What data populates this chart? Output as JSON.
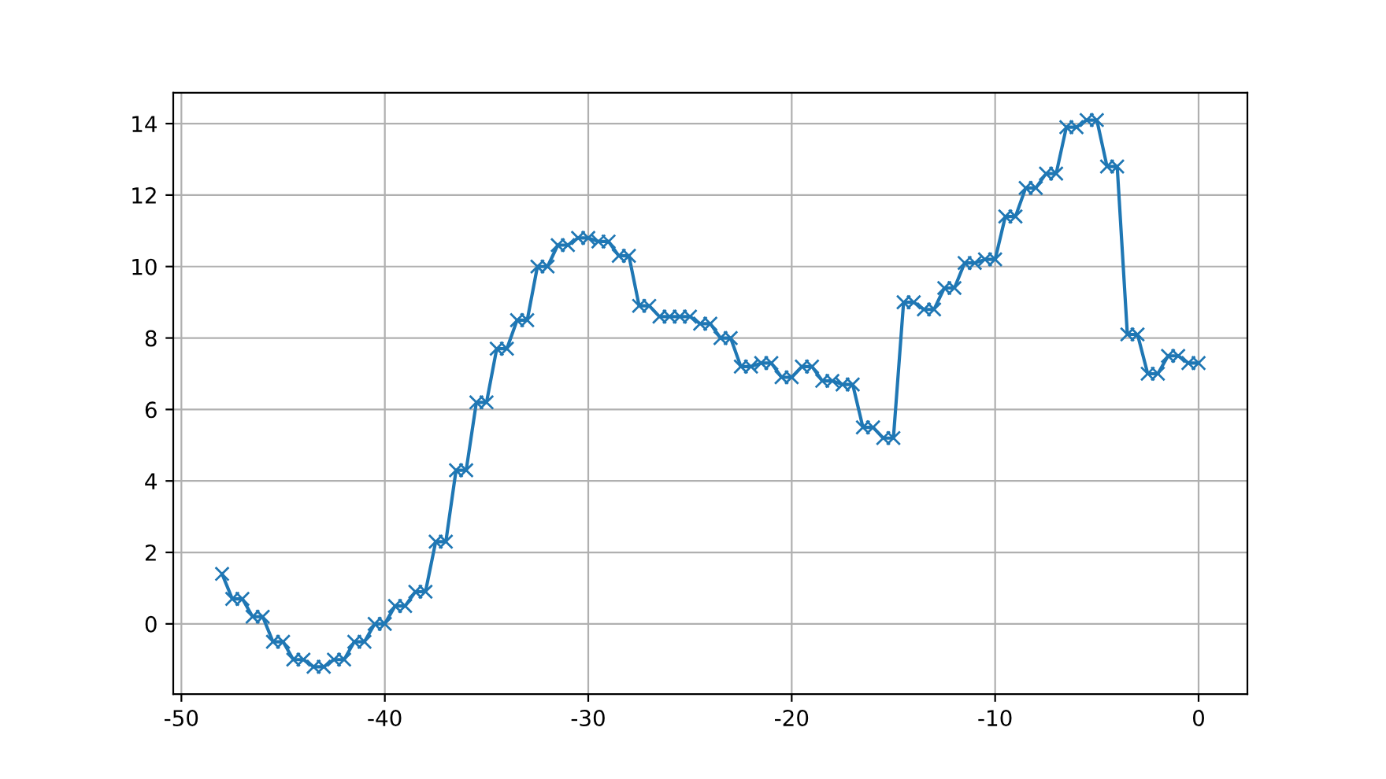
{
  "chart_data": {
    "type": "line",
    "x": [
      -48,
      -47.5,
      -47,
      -46.5,
      -46,
      -45.5,
      -45,
      -44.5,
      -44,
      -43.5,
      -43,
      -42.5,
      -42,
      -41.5,
      -41,
      -40.5,
      -40,
      -39.5,
      -39,
      -38.5,
      -38,
      -37.5,
      -37,
      -36.5,
      -36,
      -35.5,
      -35,
      -34.5,
      -34,
      -33.5,
      -33,
      -32.5,
      -32,
      -31.5,
      -31,
      -30.5,
      -30,
      -29.5,
      -29,
      -28.5,
      -28,
      -27.5,
      -27,
      -26.5,
      -26,
      -25.5,
      -25,
      -24.5,
      -24,
      -23.5,
      -23,
      -22.5,
      -22,
      -21.5,
      -21,
      -20.5,
      -20,
      -19.5,
      -19,
      -18.5,
      -18,
      -17.5,
      -17,
      -16.5,
      -16,
      -15.5,
      -15,
      -14.5,
      -14,
      -13.5,
      -13,
      -12.5,
      -12,
      -11.5,
      -11,
      -10.5,
      -10,
      -9.5,
      -9,
      -8.5,
      -8,
      -7.5,
      -7,
      -6.5,
      -6,
      -5.5,
      -5,
      -4.5,
      -4,
      -3.5,
      -3,
      -2.5,
      -2,
      -1.5,
      -1,
      -0.5,
      0
    ],
    "series": [
      {
        "color": "#1f77b4",
        "values": [
          1.4,
          0.7,
          0.7,
          0.2,
          0.2,
          -0.5,
          -0.5,
          -1.0,
          -1.0,
          -1.2,
          -1.2,
          -1.0,
          -1.0,
          -0.5,
          -0.5,
          0.0,
          0.0,
          0.5,
          0.5,
          0.9,
          0.9,
          2.3,
          2.3,
          4.3,
          4.3,
          6.2,
          6.2,
          7.7,
          7.7,
          8.5,
          8.5,
          10.0,
          10.0,
          10.6,
          10.6,
          10.8,
          10.8,
          10.7,
          10.7,
          10.3,
          10.3,
          8.9,
          8.9,
          8.6,
          8.6,
          8.6,
          8.6,
          8.4,
          8.4,
          8.0,
          8.0,
          7.2,
          7.2,
          7.3,
          7.3,
          6.9,
          6.9,
          7.2,
          7.2,
          6.8,
          6.8,
          6.7,
          6.7,
          5.5,
          5.5,
          5.2,
          5.2,
          9.0,
          9.0,
          8.8,
          8.8,
          9.4,
          9.4,
          10.1,
          10.1,
          10.2,
          10.2,
          11.4,
          11.4,
          12.2,
          12.2,
          12.6,
          12.6,
          13.9,
          13.9,
          14.1,
          14.1,
          12.8,
          12.8,
          8.1,
          8.1,
          7.0,
          7.0,
          7.5,
          7.5,
          7.3,
          7.3
        ]
      }
    ],
    "xlim": [
      -50.4,
      2.4
    ],
    "ylim": [
      -1.965,
      14.865
    ],
    "xticks": [
      -50,
      -40,
      -30,
      -20,
      -10,
      0
    ],
    "yticks": [
      0,
      2,
      4,
      6,
      8,
      10,
      12,
      14
    ],
    "grid": true,
    "marker": "cross",
    "line_style": "solid"
  }
}
